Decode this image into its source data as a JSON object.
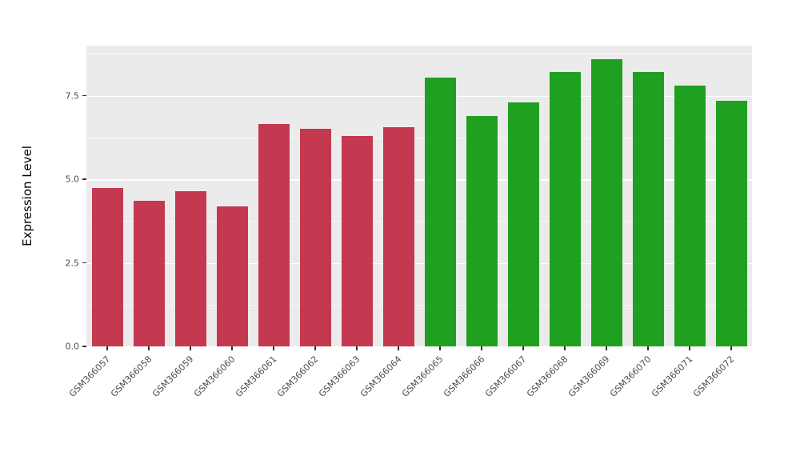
{
  "figure": {
    "background": "#FFFFFF",
    "panel_background": "#EBEBEB",
    "grid_color": "#FFFFFF",
    "axis_text_color": "#4D4D4D",
    "axis_title_color": "#000000"
  },
  "chart_data": {
    "type": "bar",
    "title": "",
    "xlabel": "",
    "ylabel": "Expression Level",
    "categories": [
      "GSM366057",
      "GSM366058",
      "GSM366059",
      "GSM366060",
      "GSM366061",
      "GSM366062",
      "GSM366063",
      "GSM366064",
      "GSM366065",
      "GSM366066",
      "GSM366067",
      "GSM366068",
      "GSM366069",
      "GSM366070",
      "GSM366071",
      "GSM366072"
    ],
    "values": [
      4.75,
      4.35,
      4.65,
      4.2,
      6.65,
      6.5,
      6.3,
      6.55,
      8.05,
      6.9,
      7.3,
      8.2,
      8.6,
      8.2,
      7.8,
      7.35
    ],
    "bar_colors": [
      "#C4394F",
      "#C4394F",
      "#C4394F",
      "#C4394F",
      "#C4394F",
      "#C4394F",
      "#C4394F",
      "#C4394F",
      "#20A020",
      "#20A020",
      "#20A020",
      "#20A020",
      "#20A020",
      "#20A020",
      "#20A020",
      "#20A020"
    ],
    "group_colors": {
      "first_eight": "#C4394F",
      "last_eight": "#20A020"
    },
    "ylim": [
      0,
      9.0
    ],
    "yticks": [
      0,
      2.5,
      5.0,
      7.5
    ],
    "ytick_labels": [
      "0.0",
      "2.5",
      "5.0",
      "7.5"
    ],
    "minor_ticks": [
      1.25,
      3.75,
      6.25,
      8.75
    ],
    "grid": true,
    "legend": "none",
    "bar_width_fraction": 0.75,
    "x_label_rotation_deg": 45
  }
}
